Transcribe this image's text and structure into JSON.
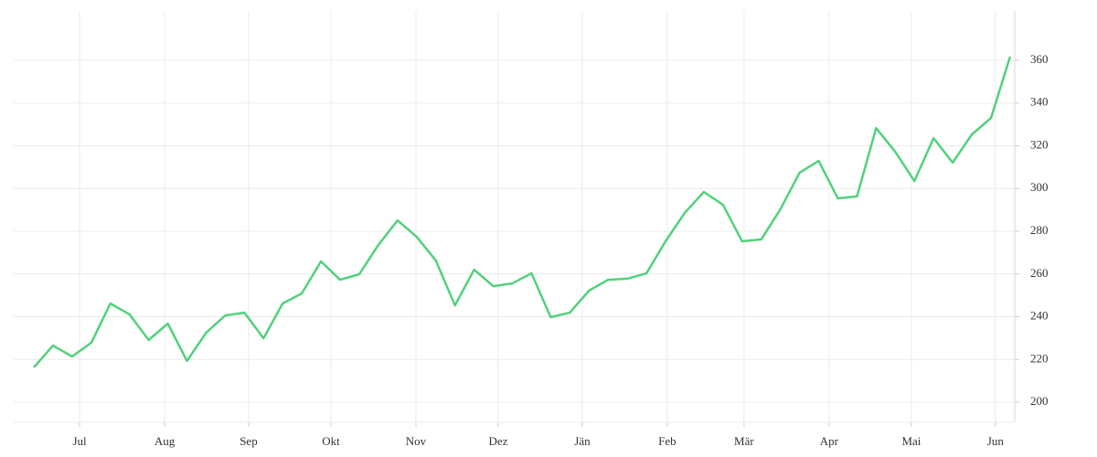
{
  "chart_data": {
    "type": "line",
    "x": [
      0,
      1,
      2,
      3,
      4,
      5,
      6,
      7,
      8,
      9,
      10,
      11,
      12,
      13,
      14,
      15,
      16,
      17,
      18,
      19,
      20,
      21,
      22,
      23,
      24,
      25,
      26,
      27,
      28,
      29,
      30,
      31,
      32,
      33,
      34,
      35,
      36,
      37,
      38,
      39,
      40,
      41,
      42,
      43,
      44,
      45,
      46,
      47,
      48,
      49,
      50,
      51
    ],
    "series": [
      {
        "color": "#52d17c",
        "values": [
          216.3,
          226.5,
          221.4,
          227.8,
          246.2,
          241.1,
          229.1,
          236.8,
          219.3,
          232.5,
          240.6,
          241.9,
          229.9,
          246.2,
          250.9,
          265.9,
          257.3,
          259.9,
          273.6,
          285.1,
          277.4,
          266.3,
          245.3,
          262.0,
          254.3,
          255.6,
          260.3,
          239.8,
          241.9,
          252.2,
          257.3,
          257.8,
          260.3,
          275.3,
          288.6,
          298.4,
          292.4,
          275.3,
          276.2,
          290.3,
          307.4,
          312.9,
          295.4,
          296.3,
          328.3,
          317.2,
          303.5,
          323.6,
          312.1,
          325.3,
          333.0,
          361.7
        ]
      }
    ],
    "xlim": [
      -1.05,
      51.24
    ],
    "xticks": [
      {
        "value": 2.39,
        "label": "Jul"
      },
      {
        "value": 6.83,
        "label": "Aug"
      },
      {
        "value": 11.22,
        "label": "Sep"
      },
      {
        "value": 15.52,
        "label": "Okt"
      },
      {
        "value": 19.96,
        "label": "Nov"
      },
      {
        "value": 24.26,
        "label": "Dez"
      },
      {
        "value": 28.65,
        "label": "Jän"
      },
      {
        "value": 33.09,
        "label": "Feb"
      },
      {
        "value": 37.1,
        "label": "Mär"
      },
      {
        "value": 41.54,
        "label": "Apr"
      },
      {
        "value": 45.84,
        "label": "Mai"
      },
      {
        "value": 50.23,
        "label": "Jun"
      }
    ],
    "ylim": [
      190.6,
      383.1
    ],
    "yticks": [
      200,
      220,
      240,
      260,
      280,
      300,
      320,
      340,
      360
    ],
    "grid": true
  }
}
